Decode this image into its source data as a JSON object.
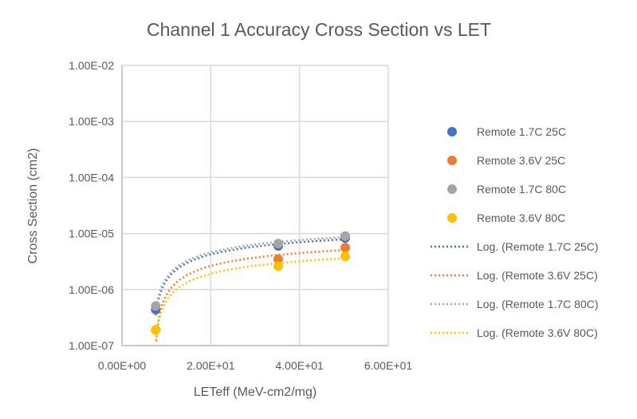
{
  "chart_data": {
    "type": "scatter",
    "title": "Channel 1 Accuracy Cross Section vs LET",
    "xlabel": "LETeff (MeV-cm2/mg)",
    "ylabel": "Cross Section (cm2)",
    "xlim": [
      0,
      60
    ],
    "ylim": [
      1e-07,
      0.01
    ],
    "yscale": "log",
    "grid": true,
    "legend_position": "right",
    "xticks": [
      0,
      20,
      40,
      60
    ],
    "xtick_labels": [
      "0.00E+00",
      "2.00E+01",
      "4.00E+01",
      "6.00E+01"
    ],
    "yticks": [
      1e-07,
      1e-06,
      1e-05,
      0.0001,
      0.001,
      0.01
    ],
    "ytick_labels": [
      "1.00E-07",
      "1.00E-06",
      "1.00E-05",
      "1.00E-04",
      "1.00E-03",
      "1.00E-02"
    ],
    "series": [
      {
        "name": "Remote 1.7C 25C",
        "color": "#4472C4",
        "x": [
          7.6,
          35.2,
          50.3
        ],
        "y": [
          4.4e-07,
          6e-06,
          8.3e-06
        ]
      },
      {
        "name": "Remote 3.6V 25C",
        "color": "#ED7D31",
        "x": [
          7.6,
          35.2,
          50.3
        ],
        "y": [
          1.9e-07,
          3.5e-06,
          5.6e-06
        ]
      },
      {
        "name": "Remote 1.7C 80C",
        "color": "#A5A5A5",
        "x": [
          7.6,
          35.2,
          50.3
        ],
        "y": [
          5.1e-07,
          6.6e-06,
          9e-06
        ]
      },
      {
        "name": "Remote 3.6V 80C",
        "color": "#FFC000",
        "x": [
          7.6,
          35.2,
          50.3
        ],
        "y": [
          1.9e-07,
          2.6e-06,
          3.9e-06
        ]
      }
    ],
    "trendlines": [
      {
        "name": "Log. (Remote 1.7C 25C)",
        "type": "logarithmic",
        "series": 0
      },
      {
        "name": "Log. (Remote 3.6V 25C)",
        "type": "logarithmic",
        "series": 1
      },
      {
        "name": "Log. (Remote 1.7C 80C)",
        "type": "logarithmic",
        "series": 2
      },
      {
        "name": "Log. (Remote 3.6V 80C)",
        "type": "logarithmic",
        "series": 3
      }
    ]
  }
}
